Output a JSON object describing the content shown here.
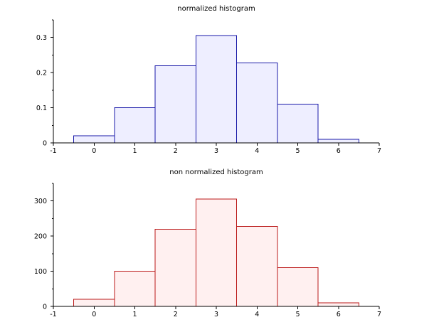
{
  "chart_data": [
    {
      "type": "bar",
      "title": "normalized histogram",
      "xlabel": "",
      "ylabel": "",
      "categories": [
        "0",
        "1",
        "2",
        "3",
        "4",
        "5",
        "6"
      ],
      "x": [
        0,
        1,
        2,
        3,
        4,
        5,
        6
      ],
      "values": [
        0.02,
        0.1,
        0.22,
        0.305,
        0.228,
        0.11,
        0.01
      ],
      "bin_width": 1,
      "xlim": [
        -1,
        7
      ],
      "ylim": [
        0,
        0.35
      ],
      "x_ticks": [
        -1,
        0,
        1,
        2,
        3,
        4,
        5,
        6,
        7
      ],
      "y_ticks": [
        0,
        0.1,
        0.2,
        0.3
      ],
      "y_tick_labels": [
        "0",
        "0.1",
        "0.2",
        "0.3"
      ],
      "grid": false,
      "colors": {
        "edge": "#1a1aa8",
        "fill": "#eeeeff"
      }
    },
    {
      "type": "bar",
      "title": "non normalized histogram",
      "xlabel": "",
      "ylabel": "",
      "categories": [
        "0",
        "1",
        "2",
        "3",
        "4",
        "5",
        "6"
      ],
      "x": [
        0,
        1,
        2,
        3,
        4,
        5,
        6
      ],
      "values": [
        20,
        100,
        220,
        305,
        228,
        110,
        10
      ],
      "bin_width": 1,
      "xlim": [
        -1,
        7
      ],
      "ylim": [
        0,
        350
      ],
      "x_ticks": [
        -1,
        0,
        1,
        2,
        3,
        4,
        5,
        6,
        7
      ],
      "y_ticks": [
        0,
        100,
        200,
        300
      ],
      "y_tick_labels": [
        "0",
        "100",
        "200",
        "300"
      ],
      "grid": false,
      "colors": {
        "edge": "#bb1a1a",
        "fill": "#fff0f0"
      }
    }
  ]
}
